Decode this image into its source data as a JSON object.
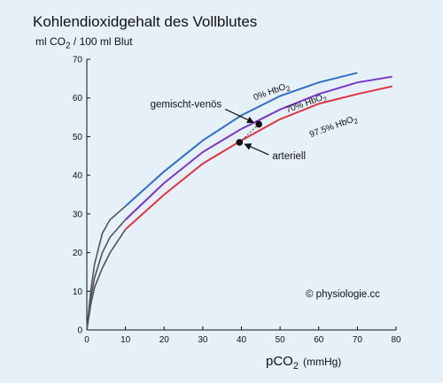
{
  "chart_data": {
    "type": "line",
    "title": "Kohlendioxidgehalt des Vollblutes",
    "ylabel": {
      "prefix": "ml CO",
      "sub": "2",
      "suffix": " / 100 ml Blut"
    },
    "xlabel": {
      "prefix": "pCO",
      "sub": "2",
      "unit": "(mmHg)"
    },
    "xlim": [
      0,
      80
    ],
    "ylim": [
      0,
      70
    ],
    "x_ticks": [
      0,
      10,
      20,
      30,
      40,
      50,
      60,
      70,
      80
    ],
    "y_ticks": [
      0,
      10,
      20,
      30,
      40,
      50,
      60,
      70
    ],
    "grid": false,
    "series": [
      {
        "name": "0% HbO2",
        "label": {
          "prefix": "0% HbO",
          "sub": "2"
        },
        "color": "#2f6fc6",
        "points": [
          [
            0,
            0
          ],
          [
            1,
            10
          ],
          [
            2,
            17
          ],
          [
            4,
            25
          ],
          [
            6,
            28.5
          ],
          [
            10,
            32
          ],
          [
            20,
            41
          ],
          [
            30,
            49
          ],
          [
            40,
            55.5
          ],
          [
            45,
            58
          ],
          [
            50,
            60.5
          ],
          [
            60,
            64
          ],
          [
            70,
            66.5
          ]
        ],
        "label_at": [
          48,
          61
        ]
      },
      {
        "name": "70% HbO2",
        "label": {
          "prefix": "70% HbO",
          "sub": "2"
        },
        "color": "#7a35c4",
        "points": [
          [
            0,
            0
          ],
          [
            1,
            8
          ],
          [
            2,
            13.5
          ],
          [
            4,
            20
          ],
          [
            6,
            24
          ],
          [
            10,
            28.5
          ],
          [
            20,
            38
          ],
          [
            30,
            46
          ],
          [
            40,
            52
          ],
          [
            45,
            54.5
          ],
          [
            50,
            57
          ],
          [
            60,
            61
          ],
          [
            70,
            64
          ],
          [
            79,
            65.5
          ]
        ],
        "label_at": [
          57,
          58
        ]
      },
      {
        "name": "97.5% HbO2",
        "label": {
          "prefix": "97.5% HbO",
          "sub": "2"
        },
        "color": "#e0343f",
        "points": [
          [
            0,
            0
          ],
          [
            1,
            6.5
          ],
          [
            2,
            11
          ],
          [
            4,
            16
          ],
          [
            6,
            20
          ],
          [
            10,
            26
          ],
          [
            20,
            35
          ],
          [
            30,
            43
          ],
          [
            40,
            49
          ],
          [
            50,
            54.5
          ],
          [
            60,
            58.5
          ],
          [
            70,
            61
          ],
          [
            79,
            63
          ]
        ],
        "label_at": [
          64,
          52
        ]
      }
    ],
    "early_segment_color": "#555555",
    "early_segment_end_x": 10,
    "points_of_interest": [
      {
        "label": "gemischt-venös",
        "x": 44.5,
        "y": 53.2
      },
      {
        "label": "arteriell",
        "x": 39.5,
        "y": 48.5
      }
    ],
    "copyright": "© physiologie.cc"
  }
}
